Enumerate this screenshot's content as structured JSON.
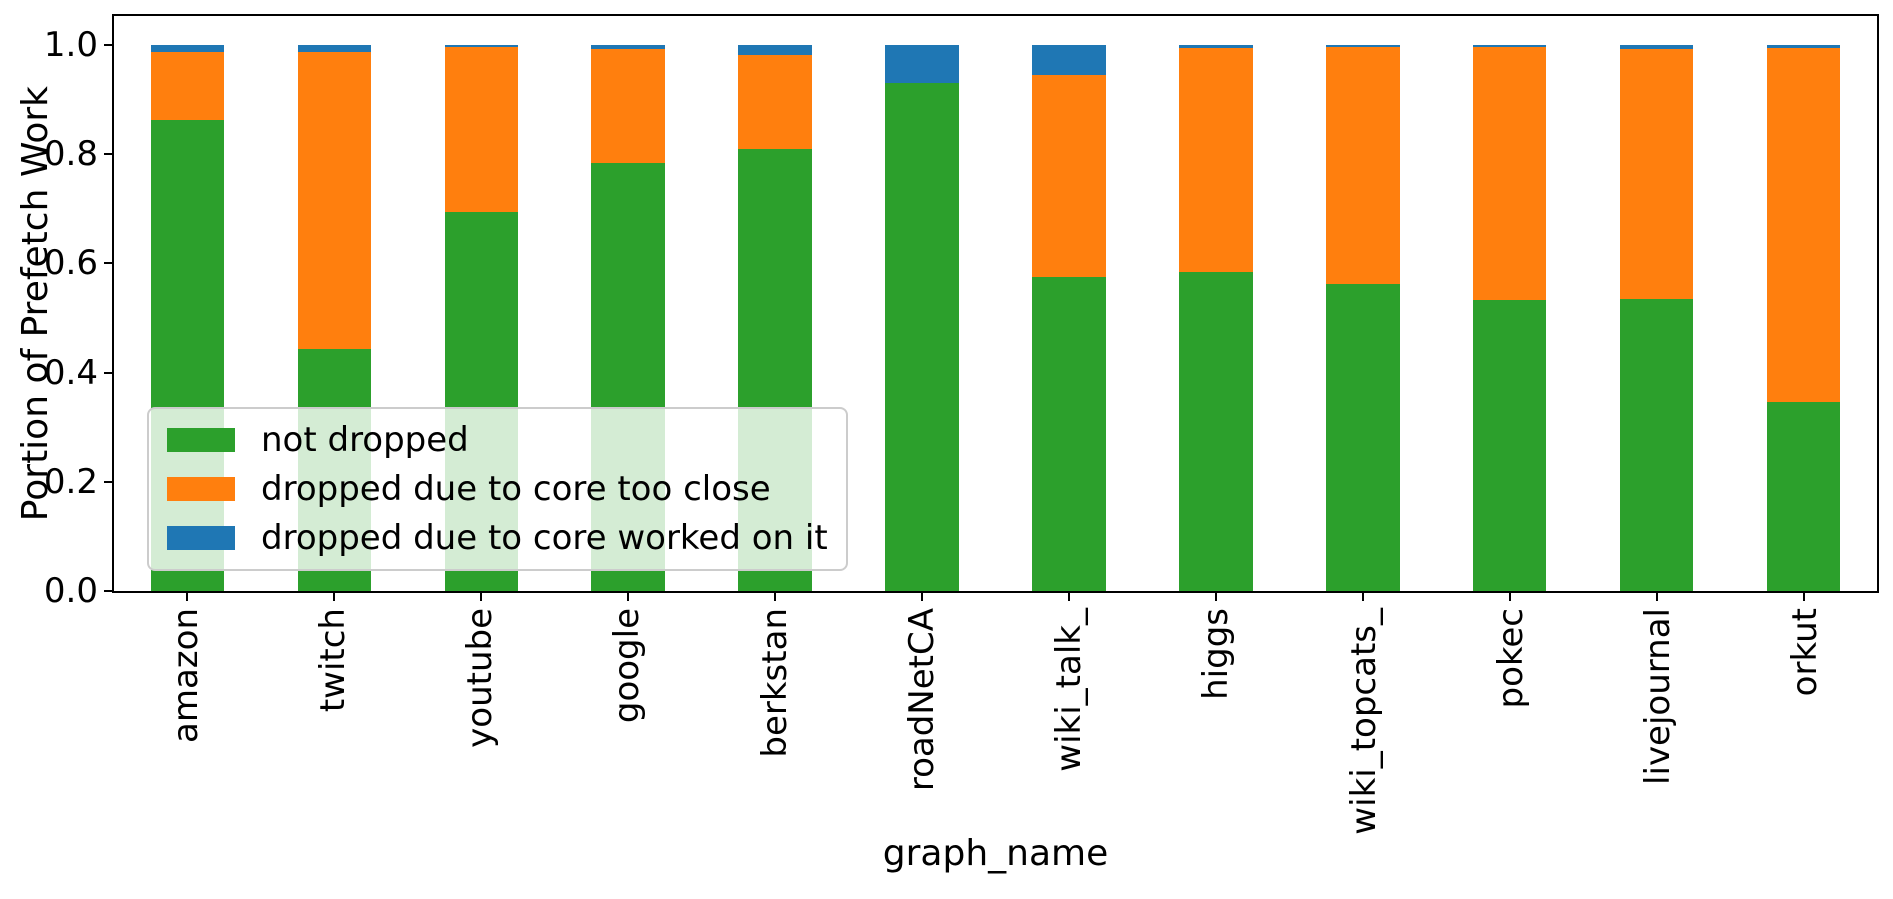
{
  "figure": {
    "background": "#ffffff",
    "spine_color": "#000000"
  },
  "chart_data": {
    "type": "bar",
    "stacked": true,
    "title": "",
    "xlabel": "graph_name",
    "ylabel": "Portion of Prefetch Work",
    "ylim": [
      0,
      1.053
    ],
    "yticks": [
      0.0,
      0.2,
      0.4,
      0.6,
      0.8,
      1.0
    ],
    "ytick_labels": [
      "0.0",
      "0.2",
      "0.4",
      "0.6",
      "0.8",
      "1.0"
    ],
    "grid": false,
    "bar_width_fraction": 0.5,
    "legend_position": "lower left",
    "categories": [
      "amazon",
      "twitch",
      "youtube",
      "google",
      "berkstan",
      "roadNetCA",
      "wiki_talk_",
      "higgs",
      "wiki_topcats_",
      "pokec",
      "livejournal",
      "orkut"
    ],
    "series": [
      {
        "name": "not dropped",
        "color": "#2ca02c",
        "values": [
          0.862,
          0.443,
          0.695,
          0.783,
          0.809,
          0.931,
          0.575,
          0.584,
          0.563,
          0.533,
          0.534,
          0.347
        ]
      },
      {
        "name": "dropped due to core too close",
        "color": "#ff7f0e",
        "values": [
          0.125,
          0.545,
          0.301,
          0.209,
          0.173,
          0.0,
          0.37,
          0.41,
          0.433,
          0.464,
          0.458,
          0.648
        ]
      },
      {
        "name": "dropped due to core worked on it",
        "color": "#1f77b4",
        "values": [
          0.013,
          0.012,
          0.004,
          0.008,
          0.018,
          0.069,
          0.055,
          0.006,
          0.004,
          0.003,
          0.008,
          0.005
        ]
      }
    ]
  }
}
